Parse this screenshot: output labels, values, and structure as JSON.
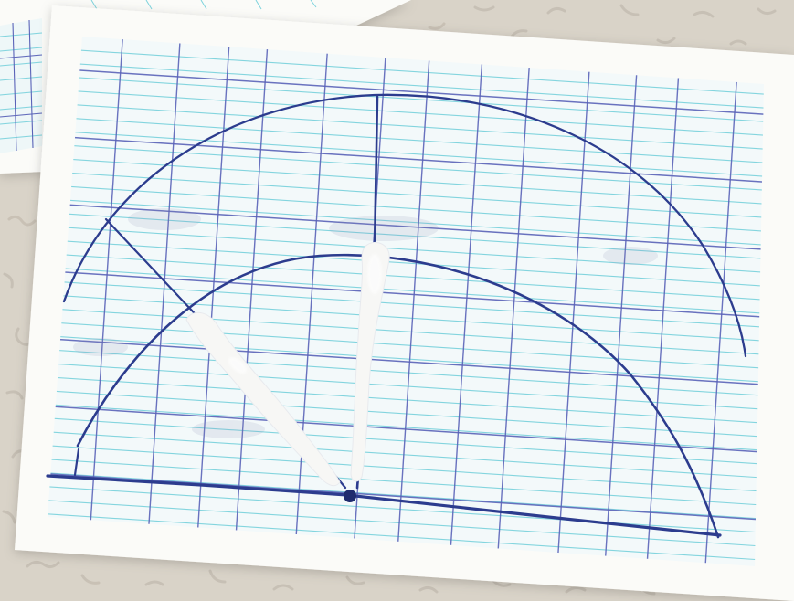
{
  "scene": {
    "subject": "photo-of-graph-paper-with-hand-drawn-arcs",
    "paper_count": 2
  },
  "colors": {
    "background_tabletop": "#d9d3c8",
    "background_pattern": "#c9c2b6",
    "paper_white": "#fbfbf8",
    "grid_cyan": "#7ed3dd",
    "grid_blue": "#5a63b8",
    "ink_blue": "#2c3c8e",
    "correction_white": "#f7f7f5"
  }
}
